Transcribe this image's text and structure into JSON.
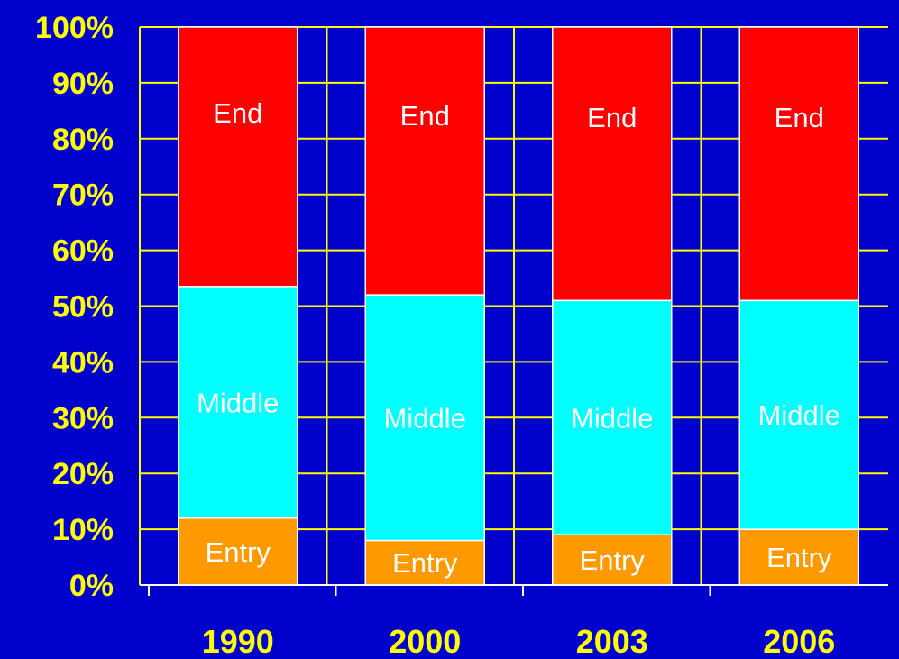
{
  "chart_data": {
    "type": "bar",
    "stacked": true,
    "categories": [
      "1990",
      "2000",
      "2003",
      "2006"
    ],
    "series": [
      {
        "segment_label": "Entry",
        "color": "#ff9900",
        "values": [
          12,
          8,
          9,
          10
        ]
      },
      {
        "segment_label": "Middle",
        "color": "#00ffff",
        "values": [
          41.5,
          44,
          42,
          41
        ]
      },
      {
        "segment_label": "End",
        "color": "#ff0000",
        "values": [
          46.5,
          48,
          49,
          49
        ]
      }
    ],
    "ylim": [
      0,
      100
    ],
    "yticks": [
      "0%",
      "10%",
      "20%",
      "30%",
      "40%",
      "50%",
      "60%",
      "70%",
      "80%",
      "90%",
      "100%"
    ],
    "grid": true,
    "legend": "none",
    "colors": {
      "background": "#0000cc",
      "gridline": "#ffff00",
      "tick_text": "#ffff00",
      "segment_text": "#ffffff"
    }
  }
}
